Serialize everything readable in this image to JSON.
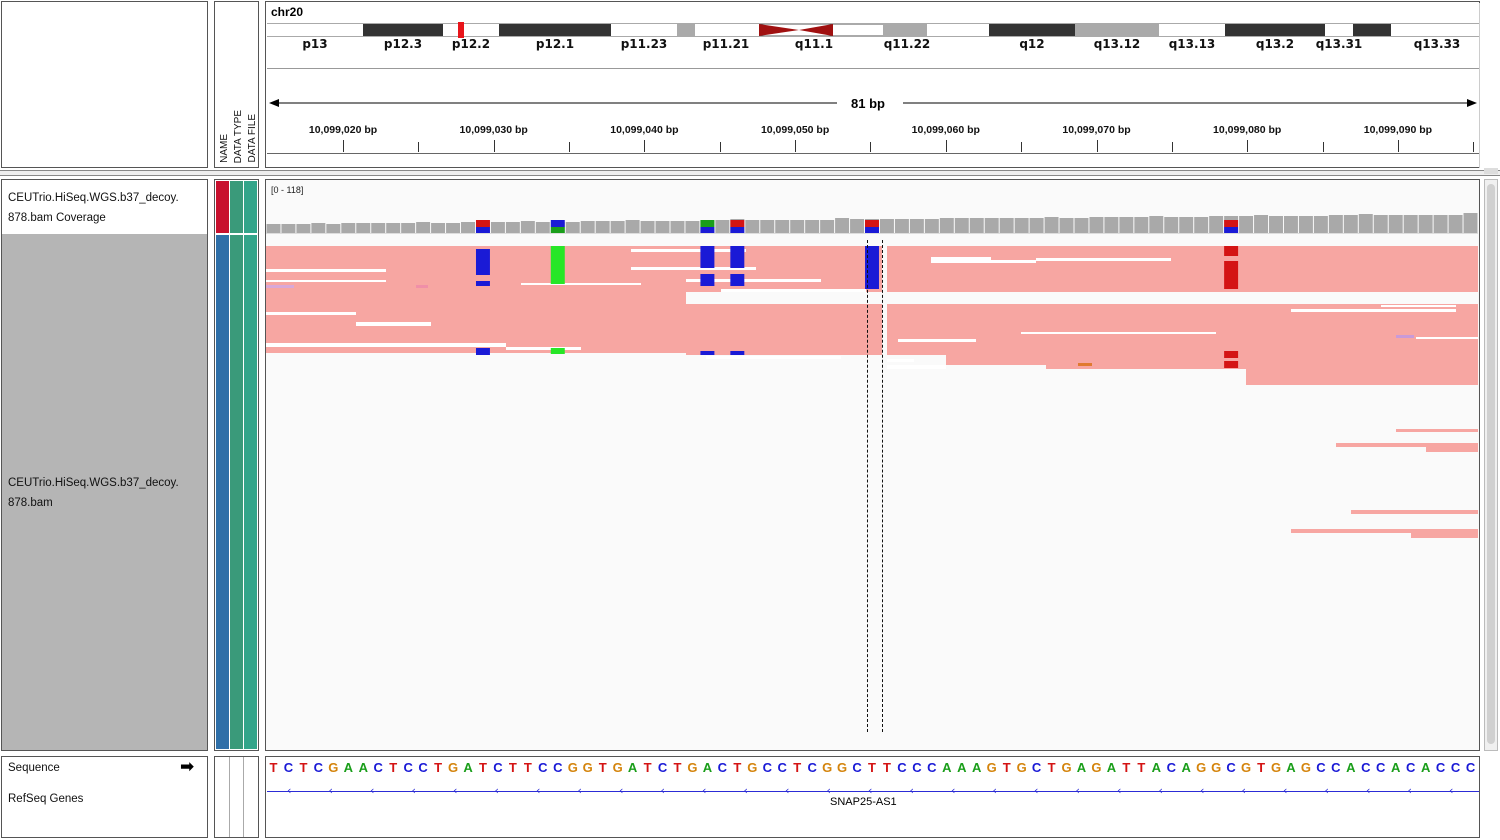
{
  "header": {
    "chromosome": "chr20",
    "span_label": "81 bp",
    "attribute_headers": [
      "NAME",
      "DATA TYPE",
      "DATA FILE"
    ]
  },
  "ideogram": {
    "bands": [
      {
        "name": "p13",
        "stain": "gneg"
      },
      {
        "name": "p12.3",
        "stain": "gpos100"
      },
      {
        "name": "p12.2",
        "stain": "gneg"
      },
      {
        "name": "p12.1",
        "stain": "gpos100"
      },
      {
        "name": "p11.23",
        "stain": "gneg"
      },
      {
        "name": "p11.21",
        "stain": "gneg"
      },
      {
        "name": "q11.1",
        "stain": "acen"
      },
      {
        "name": "q11.22",
        "stain": "gpos50"
      },
      {
        "name": "q12",
        "stain": "gpos100"
      },
      {
        "name": "q13.12",
        "stain": "gpos50"
      },
      {
        "name": "q13.13",
        "stain": "gneg"
      },
      {
        "name": "q13.2",
        "stain": "gpos100"
      },
      {
        "name": "q13.31",
        "stain": "gneg"
      },
      {
        "name": "q13.33",
        "stain": "gneg"
      }
    ],
    "current_locus_color": "#e8141a"
  },
  "ruler": {
    "labels": [
      "10,099,020 bp",
      "10,099,030 bp",
      "10,099,040 bp",
      "10,099,050 bp",
      "10,099,060 bp",
      "10,099,070 bp",
      "10,099,080 bp",
      "10,099,090 bp"
    ]
  },
  "tracks": {
    "coverage_name": "CEUTrio.HiSeq.WGS.b37_decoy.\n878.bam Coverage",
    "coverage_range": "[0 - 118]",
    "alignment_name": "CEUTrio.HiSeq.WGS.b37_decoy.\n878.bam",
    "sequence_name": "Sequence",
    "genes_name": "RefSeq Genes",
    "gene_label": "SNAP25-AS1"
  },
  "sequence": "TCTCGAACTCCTGATCTTCCGGTGATCTGACTGCCTCGGCTTCCCAAAGTGCTGAGATTACAGGCGTGAGCCACCACACCC",
  "colors": {
    "A": "#1a9e1a",
    "C": "#1a1ad6",
    "G": "#d4840c",
    "T": "#d41414",
    "read_fill": "#f7a6a2",
    "coverage_bar": "#a9a9a9",
    "attr_red": "#c8102e",
    "attr_blue": "#2f6fa8",
    "attr_green": "#3a9a7a",
    "attr_teal": "#33a58a"
  }
}
